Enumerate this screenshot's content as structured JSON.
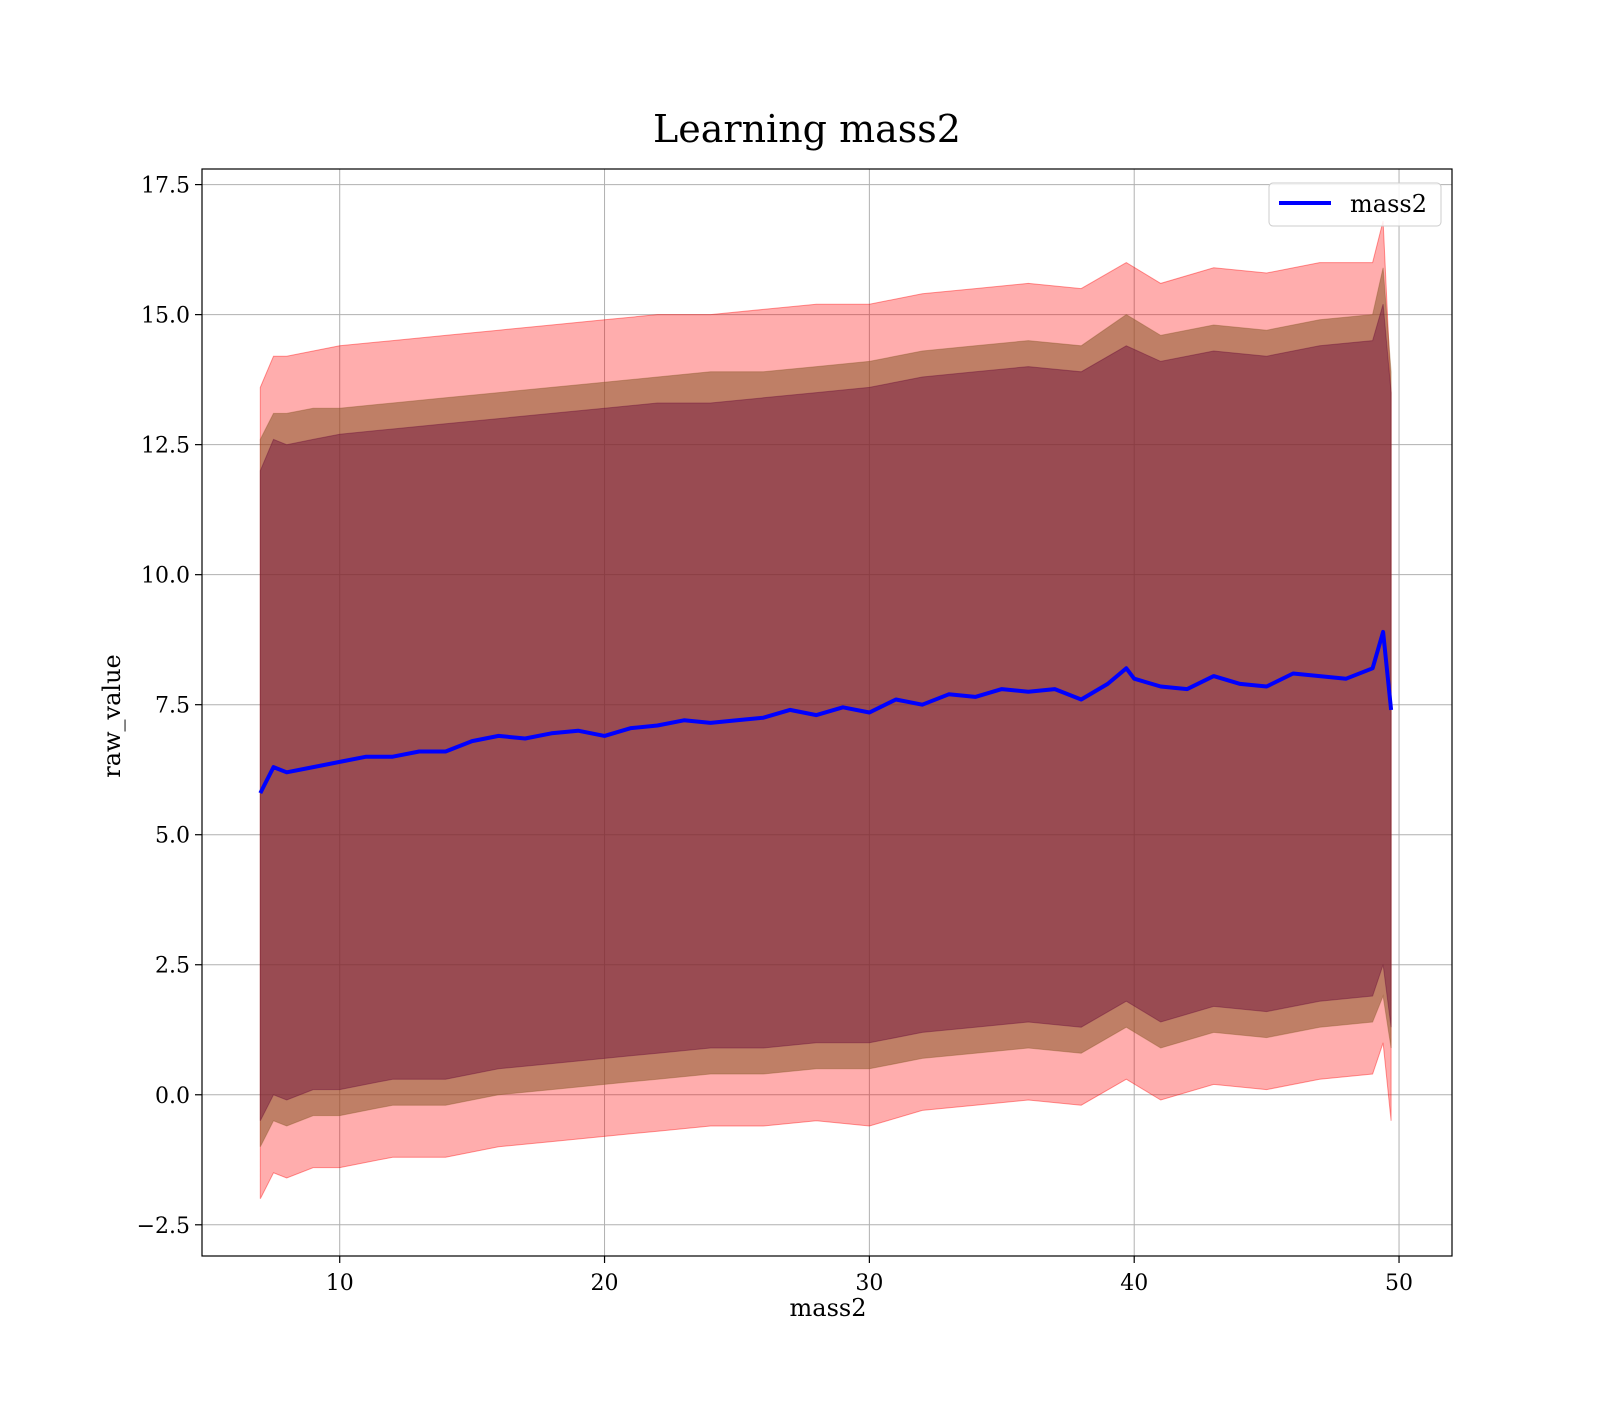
{
  "chart_data": {
    "type": "line",
    "title": "Learning mass2",
    "xlabel": "mass2",
    "ylabel": "raw_value",
    "xlim": [
      4.8,
      52
    ],
    "ylim": [
      -3.1,
      17.8
    ],
    "xticks": [
      10,
      20,
      30,
      40,
      50
    ],
    "yticks": [
      -2.5,
      0.0,
      2.5,
      5.0,
      7.5,
      10.0,
      12.5,
      15.0,
      17.5
    ],
    "ytick_labels": [
      "−2.5",
      "0.0",
      "2.5",
      "5.0",
      "7.5",
      "10.0",
      "12.5",
      "15.0",
      "17.5"
    ],
    "xtick_labels": [
      "10",
      "20",
      "30",
      "40",
      "50"
    ],
    "grid": true,
    "legend": {
      "position": "top-right",
      "entries": [
        "mass2"
      ]
    },
    "colors": {
      "line": "#0000ff",
      "band_outer": "#ff0000",
      "band_mid": "#8b5a2b",
      "band_inner": "#6a0d3a",
      "grid": "#b0b0b0"
    },
    "series": [
      {
        "name": "mass2",
        "x": [
          7.0,
          7.5,
          8.0,
          9.0,
          10.0,
          11.0,
          12.0,
          13.0,
          14.0,
          15.0,
          16.0,
          17.0,
          18.0,
          19.0,
          20.0,
          21.0,
          22.0,
          23.0,
          24.0,
          25.0,
          26.0,
          27.0,
          28.0,
          29.0,
          30.0,
          31.0,
          32.0,
          33.0,
          34.0,
          35.0,
          36.0,
          37.0,
          38.0,
          39.0,
          39.7,
          40.0,
          41.0,
          42.0,
          43.0,
          44.0,
          45.0,
          46.0,
          47.0,
          48.0,
          49.0,
          49.4,
          49.7
        ],
        "y": [
          5.8,
          6.3,
          6.2,
          6.3,
          6.4,
          6.5,
          6.5,
          6.6,
          6.6,
          6.8,
          6.9,
          6.85,
          6.95,
          7.0,
          6.9,
          7.05,
          7.1,
          7.2,
          7.15,
          7.2,
          7.25,
          7.4,
          7.3,
          7.45,
          7.35,
          7.6,
          7.5,
          7.7,
          7.65,
          7.8,
          7.75,
          7.8,
          7.6,
          7.9,
          8.2,
          8.0,
          7.85,
          7.8,
          8.05,
          7.9,
          7.85,
          8.1,
          8.05,
          8.0,
          8.2,
          8.9,
          7.4
        ]
      }
    ],
    "bands": [
      {
        "label": "outer",
        "x": [
          7.0,
          7.5,
          8.0,
          9.0,
          10.0,
          12.0,
          14.0,
          16.0,
          18.0,
          20.0,
          22.0,
          24.0,
          26.0,
          28.0,
          30.0,
          32.0,
          34.0,
          36.0,
          38.0,
          39.7,
          41.0,
          43.0,
          45.0,
          47.0,
          49.0,
          49.4,
          49.7
        ],
        "upper": [
          13.6,
          14.2,
          14.2,
          14.3,
          14.4,
          14.5,
          14.6,
          14.7,
          14.8,
          14.9,
          15.0,
          15.0,
          15.1,
          15.2,
          15.2,
          15.4,
          15.5,
          15.6,
          15.5,
          16.0,
          15.6,
          15.9,
          15.8,
          16.0,
          16.0,
          16.8,
          13.5
        ],
        "lower": [
          -2.0,
          -1.5,
          -1.6,
          -1.4,
          -1.4,
          -1.2,
          -1.2,
          -1.0,
          -0.9,
          -0.8,
          -0.7,
          -0.6,
          -0.6,
          -0.5,
          -0.6,
          -0.3,
          -0.2,
          -0.1,
          -0.2,
          0.3,
          -0.1,
          0.2,
          0.1,
          0.3,
          0.4,
          1.0,
          -0.5
        ]
      },
      {
        "label": "middle",
        "x": [
          7.0,
          7.5,
          8.0,
          9.0,
          10.0,
          12.0,
          14.0,
          16.0,
          18.0,
          20.0,
          22.0,
          24.0,
          26.0,
          28.0,
          30.0,
          32.0,
          34.0,
          36.0,
          38.0,
          39.7,
          41.0,
          43.0,
          45.0,
          47.0,
          49.0,
          49.4,
          49.7
        ],
        "upper": [
          12.6,
          13.1,
          13.1,
          13.2,
          13.2,
          13.3,
          13.4,
          13.5,
          13.6,
          13.7,
          13.8,
          13.9,
          13.9,
          14.0,
          14.1,
          14.3,
          14.4,
          14.5,
          14.4,
          15.0,
          14.6,
          14.8,
          14.7,
          14.9,
          15.0,
          15.9,
          13.9
        ],
        "lower": [
          -1.0,
          -0.5,
          -0.6,
          -0.4,
          -0.4,
          -0.2,
          -0.2,
          0.0,
          0.1,
          0.2,
          0.3,
          0.4,
          0.4,
          0.5,
          0.5,
          0.7,
          0.8,
          0.9,
          0.8,
          1.3,
          0.9,
          1.2,
          1.1,
          1.3,
          1.4,
          1.9,
          0.9
        ]
      },
      {
        "label": "inner",
        "x": [
          7.0,
          7.5,
          8.0,
          9.0,
          10.0,
          12.0,
          14.0,
          16.0,
          18.0,
          20.0,
          22.0,
          24.0,
          26.0,
          28.0,
          30.0,
          32.0,
          34.0,
          36.0,
          38.0,
          39.7,
          41.0,
          43.0,
          45.0,
          47.0,
          49.0,
          49.4,
          49.7
        ],
        "upper": [
          12.0,
          12.6,
          12.5,
          12.6,
          12.7,
          12.8,
          12.9,
          13.0,
          13.1,
          13.2,
          13.3,
          13.3,
          13.4,
          13.5,
          13.6,
          13.8,
          13.9,
          14.0,
          13.9,
          14.4,
          14.1,
          14.3,
          14.2,
          14.4,
          14.5,
          15.2,
          13.5
        ],
        "lower": [
          -0.5,
          0.0,
          -0.1,
          0.1,
          0.1,
          0.3,
          0.3,
          0.5,
          0.6,
          0.7,
          0.8,
          0.9,
          0.9,
          1.0,
          1.0,
          1.2,
          1.3,
          1.4,
          1.3,
          1.8,
          1.4,
          1.7,
          1.6,
          1.8,
          1.9,
          2.5,
          1.3
        ]
      }
    ]
  }
}
